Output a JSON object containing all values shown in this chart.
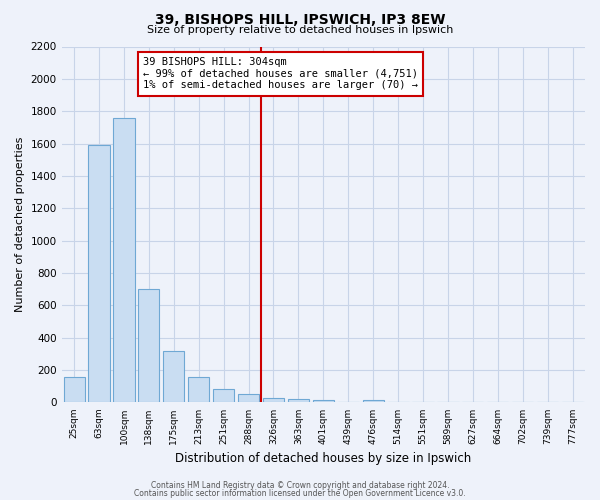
{
  "title": "39, BISHOPS HILL, IPSWICH, IP3 8EW",
  "subtitle": "Size of property relative to detached houses in Ipswich",
  "xlabel": "Distribution of detached houses by size in Ipswich",
  "ylabel": "Number of detached properties",
  "bar_labels": [
    "25sqm",
    "63sqm",
    "100sqm",
    "138sqm",
    "175sqm",
    "213sqm",
    "251sqm",
    "288sqm",
    "326sqm",
    "363sqm",
    "401sqm",
    "439sqm",
    "476sqm",
    "514sqm",
    "551sqm",
    "589sqm",
    "627sqm",
    "664sqm",
    "702sqm",
    "739sqm",
    "777sqm"
  ],
  "bar_values": [
    160,
    1590,
    1760,
    700,
    315,
    160,
    85,
    50,
    30,
    20,
    15,
    0,
    15,
    0,
    0,
    0,
    0,
    0,
    0,
    0,
    0
  ],
  "bar_color": "#c9ddf2",
  "bar_edge_color": "#6fa8d4",
  "ylim": [
    0,
    2200
  ],
  "yticks": [
    0,
    200,
    400,
    600,
    800,
    1000,
    1200,
    1400,
    1600,
    1800,
    2000,
    2200
  ],
  "vline_x": 7.5,
  "vline_color": "#cc0000",
  "annotation_title": "39 BISHOPS HILL: 304sqm",
  "annotation_line1": "← 99% of detached houses are smaller (4,751)",
  "annotation_line2": "1% of semi-detached houses are larger (70) →",
  "footer1": "Contains HM Land Registry data © Crown copyright and database right 2024.",
  "footer2": "Contains public sector information licensed under the Open Government Licence v3.0.",
  "background_color": "#eef2fa",
  "grid_color": "#c8d4e8"
}
